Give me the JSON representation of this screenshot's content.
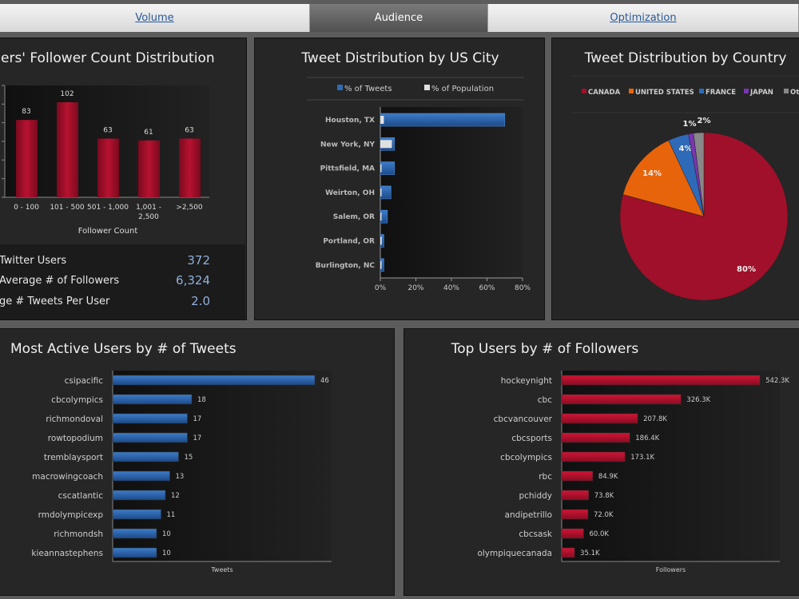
{
  "tabs": [
    {
      "label": "Volume",
      "active": false
    },
    {
      "label": "Audience",
      "active": true
    },
    {
      "label": "Optimization",
      "active": false
    }
  ],
  "colors": {
    "red": "#a0102a",
    "blue": "#2e6ab8",
    "white": "#e0e0e0",
    "orange": "#e8640a",
    "purple": "#7a35b0",
    "gray": "#888888"
  },
  "followers_panel": {
    "title": "ers' Follower Count Distribution",
    "stats": [
      {
        "label": "Twitter Users",
        "value": "372"
      },
      {
        "label": " Average # of Followers",
        "value": "6,324"
      },
      {
        "label": "ge # Tweets Per User",
        "value": "2.0"
      }
    ]
  },
  "chart_data": [
    {
      "id": "follower-dist",
      "type": "bar",
      "xlabel": "Follower Count",
      "categories": [
        "0 - 100",
        "101 - 500",
        "501 - 1,000",
        "1,001 - 2,500",
        ">2,500"
      ],
      "values": [
        83,
        102,
        63,
        61,
        63
      ],
      "ylim": [
        0,
        120
      ]
    },
    {
      "id": "city",
      "type": "bar",
      "orientation": "horizontal",
      "title": "Tweet Distribution by US City",
      "categories": [
        "Houston, TX",
        "New York, NY",
        "Pittsfield, MA",
        "Weirton, OH",
        "Salem, OR",
        "Portland, OR",
        "Burlington, NC"
      ],
      "series": [
        {
          "name": "% of Tweets",
          "values": [
            70,
            8,
            8,
            6,
            4,
            2,
            2
          ]
        },
        {
          "name": "% of Population",
          "values": [
            2,
            6.5,
            0.5,
            0.5,
            0.5,
            0.8,
            0.5
          ]
        }
      ],
      "xlim": [
        0,
        80
      ],
      "xticks": [
        "0%",
        "20%",
        "40%",
        "60%",
        "80%"
      ],
      "legend": "top"
    },
    {
      "id": "country",
      "type": "pie",
      "title": "Tweet Distribution by Country",
      "categories": [
        "CANADA",
        "UNITED STATES",
        "FRANCE",
        "JAPAN",
        "Ot"
      ],
      "values": [
        80,
        14,
        4,
        1,
        2
      ],
      "labels": [
        "80%",
        "14%",
        "4%",
        "1%",
        "2%"
      ],
      "legend": "top"
    },
    {
      "id": "active-users",
      "type": "bar",
      "orientation": "horizontal",
      "title": "Most Active Users by # of Tweets",
      "xlabel": "Tweets",
      "categories": [
        "csipacific",
        "cbcolympics",
        "richmondoval",
        "rowtopodium",
        "tremblaysport",
        "macrowingcoach",
        "cscatlantic",
        "rmdolympicexp",
        "richmondsh",
        "kieannastephens"
      ],
      "values": [
        46,
        18,
        17,
        17,
        15,
        13,
        12,
        11,
        10,
        10
      ],
      "labels": [
        "46",
        "18",
        "17",
        "17",
        "15",
        "13",
        "12",
        "11",
        "10",
        "10"
      ]
    },
    {
      "id": "top-followers",
      "type": "bar",
      "orientation": "horizontal",
      "title": "Top Users by # of Followers",
      "xlabel": "Followers",
      "categories": [
        "hockeynight",
        "cbc",
        "cbcvancouver",
        "cbcsports",
        "cbcolympics",
        "rbc",
        "pchiddy",
        "andipetrillo",
        "cbcsask",
        "olympiquecanada"
      ],
      "values": [
        542.3,
        326.3,
        207.8,
        186.4,
        173.1,
        84.9,
        73.8,
        72.0,
        60.0,
        35.1
      ],
      "labels": [
        "542.3K",
        "326.3K",
        "207.8K",
        "186.4K",
        "173.1K",
        "84.9K",
        "73.8K",
        "72.0K",
        "60.0K",
        "35.1K"
      ]
    }
  ]
}
